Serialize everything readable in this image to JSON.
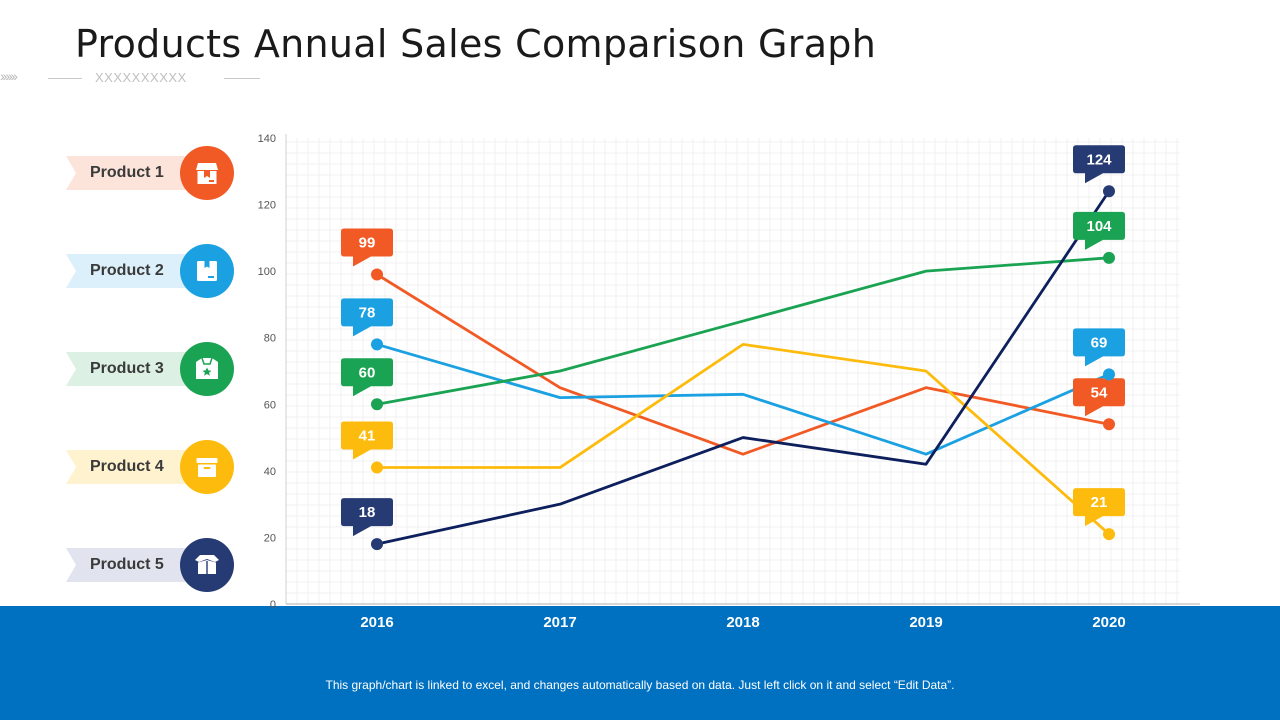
{
  "page": {
    "title": "Products Annual Sales Comparison Graph",
    "decoration_text": "XXXXXXXXXX",
    "footer_note": "This graph/chart is linked to excel, and changes automatically based on data. Just left click on it and select “Edit Data”."
  },
  "legend": [
    {
      "label": "Product 1",
      "color": "#f15a24",
      "tint": "#fde4da",
      "icon": "shop-icon"
    },
    {
      "label": "Product 2",
      "color": "#1ba1e2",
      "tint": "#dbf0fb",
      "icon": "package-icon"
    },
    {
      "label": "Product 3",
      "color": "#1aa352",
      "tint": "#dcf1e4",
      "icon": "open-box-star-icon"
    },
    {
      "label": "Product 4",
      "color": "#fdbb0d",
      "tint": "#fff2cf",
      "icon": "archive-box-icon"
    },
    {
      "label": "Product 5",
      "color": "#263a73",
      "tint": "#e1e4ee",
      "icon": "open-box-icon"
    }
  ],
  "chart_data": {
    "type": "line",
    "title": "",
    "xlabel": "",
    "ylabel": "",
    "categories": [
      "2016",
      "2017",
      "2018",
      "2019",
      "2020"
    ],
    "ylim": [
      0,
      140
    ],
    "yticks": [
      0,
      20,
      40,
      60,
      80,
      100,
      120,
      140
    ],
    "grid": true,
    "series": [
      {
        "name": "Product 1",
        "color": "#f15a24",
        "values": [
          99,
          65,
          45,
          65,
          54
        ]
      },
      {
        "name": "Product 2",
        "color": "#1ba1e2",
        "values": [
          78,
          62,
          63,
          45,
          69
        ]
      },
      {
        "name": "Product 3",
        "color": "#1aa352",
        "values": [
          60,
          70,
          85,
          100,
          104
        ]
      },
      {
        "name": "Product 4",
        "color": "#fdbb0d",
        "values": [
          41,
          41,
          78,
          70,
          21
        ]
      },
      {
        "name": "Product 5",
        "color": "#0d1f5c",
        "marker_color": "#263a73",
        "values": [
          18,
          30,
          50,
          42,
          124
        ]
      }
    ]
  }
}
